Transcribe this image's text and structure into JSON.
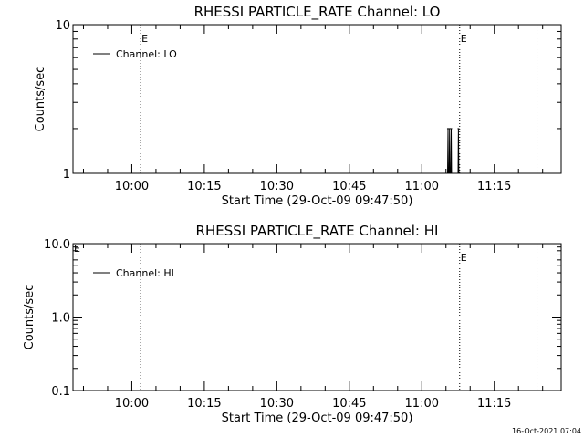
{
  "colors": {
    "background": "#ffffff",
    "ink": "#000000"
  },
  "footer_timestamp": "16-Oct-2021 07:04",
  "chart_data": [
    {
      "type": "line",
      "title": "RHESSI PARTICLE_RATE Channel: LO",
      "xlabel": "Start Time (29-Oct-09 09:47:50)",
      "ylabel": "Counts/sec",
      "y_scale": "log",
      "ylim": [
        1,
        10
      ],
      "y_ticks": [
        {
          "value": 1,
          "label": "1"
        },
        {
          "value": 10,
          "label": "10"
        }
      ],
      "xlim": [
        "09:47:50",
        "11:28:50"
      ],
      "x_ticks": [
        "10:00",
        "10:15",
        "10:30",
        "10:45",
        "11:00",
        "11:15"
      ],
      "legend": {
        "position": "top-left",
        "entries": [
          "Channel: LO"
        ]
      },
      "markers": [
        {
          "time": "10:01:50",
          "label": "E",
          "style": "dotted"
        },
        {
          "time": "11:07:50",
          "label": "E",
          "style": "dotted"
        },
        {
          "time": "11:23:50",
          "label": "",
          "style": "dotted"
        }
      ],
      "series": [
        {
          "name": "Channel: LO",
          "x": [
            "11:05:20",
            "11:05:25",
            "11:05:30",
            "11:05:40",
            "11:05:45",
            "11:05:50",
            "11:06:00",
            "11:06:05",
            "11:06:10",
            "11:07:30",
            "11:07:35",
            "11:07:40"
          ],
          "values": [
            1,
            2,
            1,
            1,
            2,
            1,
            1,
            2,
            1,
            1,
            2,
            1
          ]
        }
      ]
    },
    {
      "type": "line",
      "title": "RHESSI PARTICLE_RATE Channel: HI",
      "xlabel": "Start Time (29-Oct-09 09:47:50)",
      "ylabel": "Counts/sec",
      "y_scale": "log",
      "ylim": [
        0.1,
        10
      ],
      "y_ticks": [
        {
          "value": 0.1,
          "label": "0.1"
        },
        {
          "value": 1,
          "label": "1.0"
        },
        {
          "value": 10,
          "label": "10.0"
        }
      ],
      "xlim": [
        "09:47:50",
        "11:28:50"
      ],
      "x_ticks": [
        "10:00",
        "10:15",
        "10:30",
        "10:45",
        "11:00",
        "11:15"
      ],
      "legend": {
        "position": "top-left",
        "entries": [
          "Channel: HI"
        ]
      },
      "markers": [
        {
          "time": "10:01:50",
          "label": "",
          "style": "dotted"
        },
        {
          "time": "11:07:50",
          "label": "E",
          "style": "dotted"
        },
        {
          "time": "11:23:50",
          "label": "",
          "style": "dotted"
        }
      ],
      "corner_label": "E",
      "series": [
        {
          "name": "Channel: HI",
          "x": [],
          "values": []
        }
      ]
    }
  ]
}
